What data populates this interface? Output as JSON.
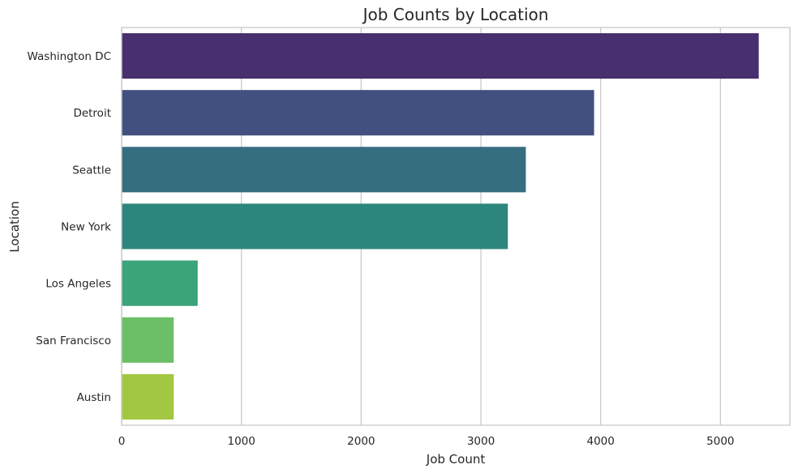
{
  "chart_data": {
    "type": "bar",
    "orientation": "horizontal",
    "title": "Job Counts by Location",
    "xlabel": "Job Count",
    "ylabel": "Location",
    "categories": [
      "Washington DC",
      "Detroit",
      "Seattle",
      "New York",
      "Los Angeles",
      "San Francisco",
      "Austin"
    ],
    "values": [
      5320,
      3945,
      3375,
      3225,
      635,
      435,
      435
    ],
    "colors": [
      "#482f6e",
      "#42507f",
      "#356e7f",
      "#2d867d",
      "#3ba478",
      "#6bbf67",
      "#a2c843"
    ],
    "xlim": [
      0,
      5580
    ],
    "xticks": [
      0,
      1000,
      2000,
      3000,
      4000,
      5000
    ],
    "grid": "x-major",
    "legend": "none"
  }
}
